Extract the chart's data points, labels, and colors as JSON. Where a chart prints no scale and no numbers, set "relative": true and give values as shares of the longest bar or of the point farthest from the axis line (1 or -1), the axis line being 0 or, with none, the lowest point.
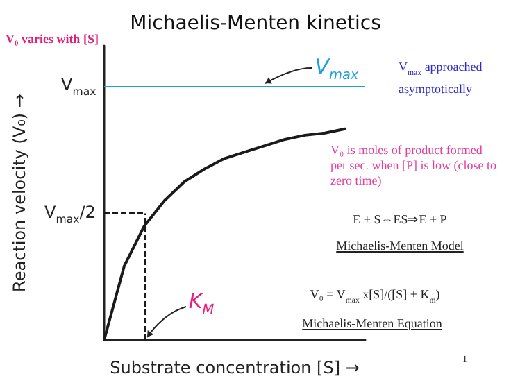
{
  "chart_data": {
    "type": "line",
    "title": "Michaelis-Menten kinetics",
    "xlabel": "Substrate concentration [S] →",
    "ylabel": "Reaction velocity (V₀) →",
    "relative": true,
    "categories": [
      null,
      null,
      null,
      null,
      null,
      null,
      null,
      null,
      null,
      null,
      null,
      null,
      null,
      null
    ],
    "series": [
      {
        "color": "#1a1a1a",
        "values": [
          0,
          0.35,
          0.54,
          0.66,
          0.75,
          0.81,
          0.86,
          0.89,
          0.92,
          0.95,
          0.97,
          0.98,
          1,
          null
        ]
      }
    ],
    "grid": false,
    "marker": "none",
    "line_style": "solid",
    "ref_lines": [
      {
        "axis": "y",
        "value": 1.2,
        "label": "V$_{max}$",
        "color": "#1ea0dc",
        "line_style": "solid"
      },
      {
        "axis": "y",
        "value": 0.6,
        "label": "V$_{max}$/2",
        "color": "#1a1a1a",
        "line_style": "dashed"
      }
    ],
    "annotations": [
      "V₀ varies with [S]",
      "V$_{max}$ approached asymptotically",
      "V₀ is moles of product formed per sec. when [P] is low (close to zero time)",
      "E + S⇔ES⇒E + P",
      "Michaelis-Menten Model",
      "V₀ = V$_{max}$ x[S]/([S] + K$_{m}$)",
      "Michaelis-Menten Equation",
      "1",
      "K$_{M}$",
      {
        "text": "V$_{max}$",
        "y": 1.2
      }
    ]
  }
}
